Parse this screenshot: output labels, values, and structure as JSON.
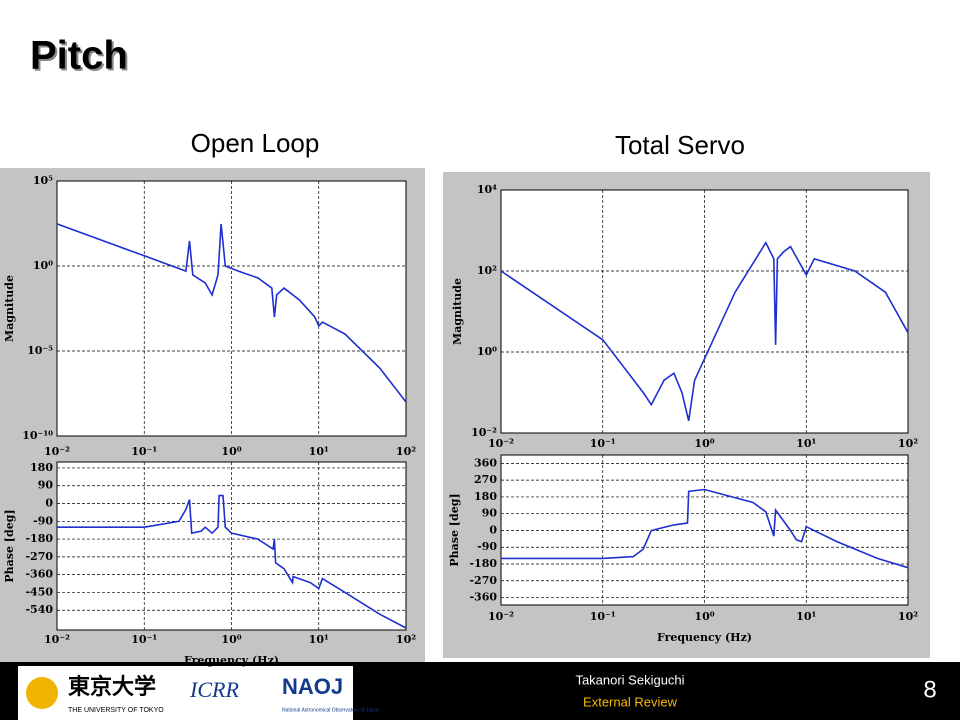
{
  "slide": {
    "title": "Pitch",
    "left_heading": "Open Loop",
    "right_heading": "Total Servo",
    "footer": {
      "author": "Takanori Sekiguchi",
      "event": "External Review",
      "page": "8",
      "logos": [
        "東京大学",
        "THE UNIVERSITY OF TOKYO",
        "ICRR",
        "NAOJ",
        "National Astronomical Observatory of Japan"
      ]
    }
  },
  "chart_data": [
    {
      "type": "line",
      "ylabel": "Magnitude",
      "xscale": "log",
      "yscale": "log",
      "grid": true,
      "color": "#1f2fd0",
      "x": [
        0.01,
        0.1,
        0.3,
        0.33,
        0.36,
        0.5,
        0.6,
        0.7,
        0.76,
        0.85,
        1.2,
        2,
        2.9,
        3.1,
        3.3,
        4,
        6,
        9,
        10,
        11,
        20,
        50,
        100
      ],
      "values": [
        300,
        4,
        0.5,
        30,
        0.3,
        0.1,
        0.02,
        0.3,
        300,
        1,
        0.5,
        0.2,
        0.05,
        0.001,
        0.02,
        0.05,
        0.01,
        0.001,
        0.0003,
        0.0005,
        0.0001,
        1e-06,
        1e-08
      ],
      "xlim": [
        0.01,
        100
      ],
      "ylim": [
        1e-10,
        100000
      ],
      "xticks": [
        {
          "value": 0.01,
          "label": "10⁻²"
        },
        {
          "value": 0.1,
          "label": "10⁻¹"
        },
        {
          "value": 1,
          "label": "10⁰"
        },
        {
          "value": 10,
          "label": "10¹"
        },
        {
          "value": 100,
          "label": "10²"
        }
      ],
      "yticks": [
        {
          "value": 1e-10,
          "label": "10⁻¹⁰"
        },
        {
          "value": 1e-05,
          "label": "10⁻⁵"
        },
        {
          "value": 1,
          "label": "10⁰"
        },
        {
          "value": 100000,
          "label": "10⁵"
        }
      ]
    },
    {
      "type": "line",
      "ylabel": "Phase [deg]",
      "xlabel": "Frequency (Hz)",
      "xscale": "log",
      "yscale": "linear",
      "grid": true,
      "color": "#1f2fd0",
      "x": [
        0.01,
        0.1,
        0.25,
        0.3,
        0.33,
        0.35,
        0.45,
        0.5,
        0.6,
        0.7,
        0.72,
        0.8,
        0.85,
        1,
        2,
        3,
        3.1,
        3.2,
        4,
        5,
        5.1,
        8,
        10,
        11,
        20,
        50,
        100
      ],
      "values": [
        -120,
        -120,
        -90,
        -30,
        20,
        -150,
        -140,
        -120,
        -150,
        -120,
        40,
        40,
        -120,
        -150,
        -180,
        -230,
        -180,
        -300,
        -330,
        -400,
        -370,
        -400,
        -430,
        -380,
        -450,
        -560,
        -630
      ],
      "xlim": [
        0.01,
        100
      ],
      "ylim": [
        -640,
        210
      ],
      "xticks": [
        {
          "value": 0.01,
          "label": "10⁻²"
        },
        {
          "value": 0.1,
          "label": "10⁻¹"
        },
        {
          "value": 1,
          "label": "10⁰"
        },
        {
          "value": 10,
          "label": "10¹"
        },
        {
          "value": 100,
          "label": "10²"
        }
      ],
      "yticks": [
        180,
        90,
        0,
        -90,
        -180,
        -270,
        -360,
        -450,
        -540
      ]
    },
    {
      "type": "line",
      "ylabel": "Magnitude",
      "xscale": "log",
      "yscale": "log",
      "grid": true,
      "color": "#1f2fd0",
      "x": [
        0.01,
        0.1,
        0.25,
        0.3,
        0.4,
        0.5,
        0.6,
        0.7,
        0.8,
        2,
        4,
        4.8,
        5,
        5.2,
        6,
        7,
        10,
        12,
        30,
        60,
        100
      ],
      "values": [
        100,
        2,
        0.1,
        0.05,
        0.2,
        0.3,
        0.1,
        0.02,
        0.2,
        30,
        500,
        200,
        1.5,
        200,
        300,
        400,
        80,
        200,
        100,
        30,
        3
      ],
      "xlim": [
        0.01,
        100
      ],
      "ylim": [
        0.01,
        10000
      ],
      "xticks": [
        {
          "value": 0.01,
          "label": "10⁻²"
        },
        {
          "value": 0.1,
          "label": "10⁻¹"
        },
        {
          "value": 1,
          "label": "10⁰"
        },
        {
          "value": 10,
          "label": "10¹"
        },
        {
          "value": 100,
          "label": "10²"
        }
      ],
      "yticks": [
        {
          "value": 0.01,
          "label": "10⁻²"
        },
        {
          "value": 1,
          "label": "10⁰"
        },
        {
          "value": 100,
          "label": "10²"
        },
        {
          "value": 10000,
          "label": "10⁴"
        }
      ]
    },
    {
      "type": "line",
      "ylabel": "Phase [deg]",
      "xlabel": "Frequency (Hz)",
      "xscale": "log",
      "yscale": "linear",
      "grid": true,
      "color": "#1f2fd0",
      "x": [
        0.01,
        0.1,
        0.2,
        0.25,
        0.3,
        0.5,
        0.68,
        0.7,
        1,
        3,
        4,
        4.8,
        5,
        7,
        8,
        9,
        10,
        20,
        50,
        100
      ],
      "values": [
        -150,
        -150,
        -140,
        -100,
        0,
        30,
        40,
        210,
        220,
        150,
        100,
        -30,
        110,
        0,
        -50,
        -60,
        20,
        -60,
        -150,
        -200
      ],
      "xlim": [
        0.01,
        100
      ],
      "ylim": [
        -400,
        405
      ],
      "xticks": [
        {
          "value": 0.01,
          "label": "10⁻²"
        },
        {
          "value": 0.1,
          "label": "10⁻¹"
        },
        {
          "value": 1,
          "label": "10⁰"
        },
        {
          "value": 10,
          "label": "10¹"
        },
        {
          "value": 100,
          "label": "10²"
        }
      ],
      "yticks": [
        360,
        270,
        180,
        90,
        0,
        -90,
        -180,
        -270,
        -360
      ]
    }
  ]
}
